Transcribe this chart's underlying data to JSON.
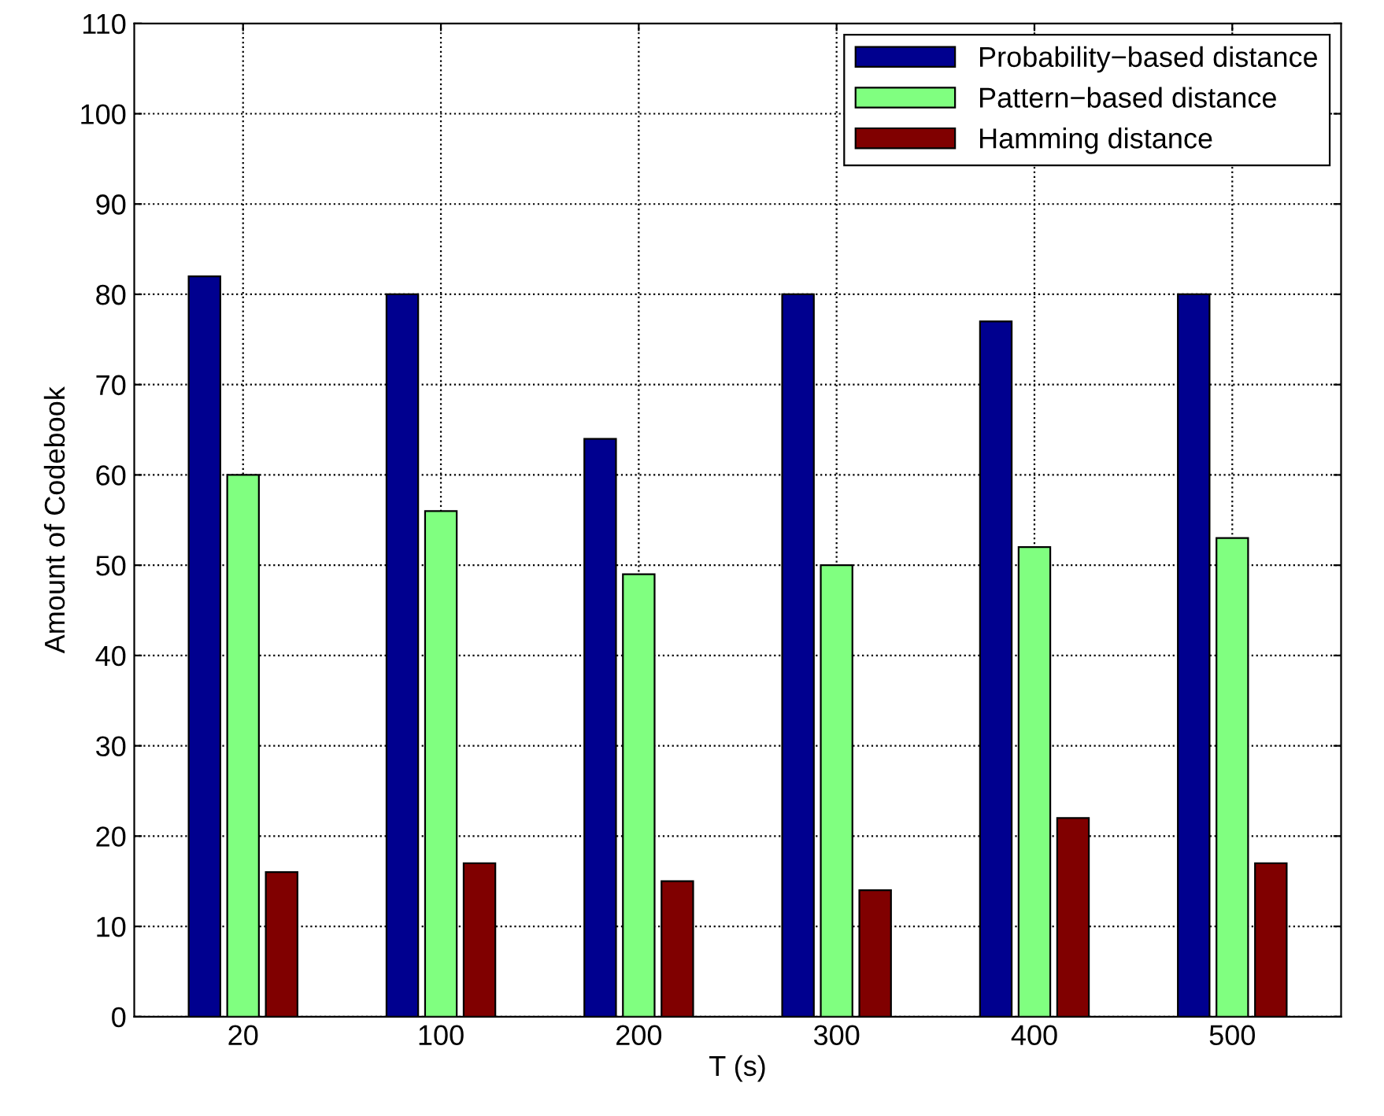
{
  "chart_data": {
    "type": "bar",
    "xlabel": "T (s)",
    "ylabel": "Amount of Codebook",
    "categories": [
      "20",
      "100",
      "200",
      "300",
      "400",
      "500"
    ],
    "series": [
      {
        "name": "Probability−based distance",
        "color": "#00008f",
        "values": [
          82,
          80,
          64,
          80,
          77,
          80
        ]
      },
      {
        "name": "Pattern−based distance",
        "color": "#80ff80",
        "values": [
          60,
          56,
          49,
          50,
          52,
          53
        ]
      },
      {
        "name": "Hamming distance",
        "color": "#800000",
        "values": [
          16,
          17,
          15,
          14,
          22,
          17
        ]
      }
    ],
    "ylim": [
      0,
      110
    ],
    "yticks": [
      0,
      10,
      20,
      30,
      40,
      50,
      60,
      70,
      80,
      90,
      100,
      110
    ],
    "grid": true,
    "legend": "top right"
  }
}
